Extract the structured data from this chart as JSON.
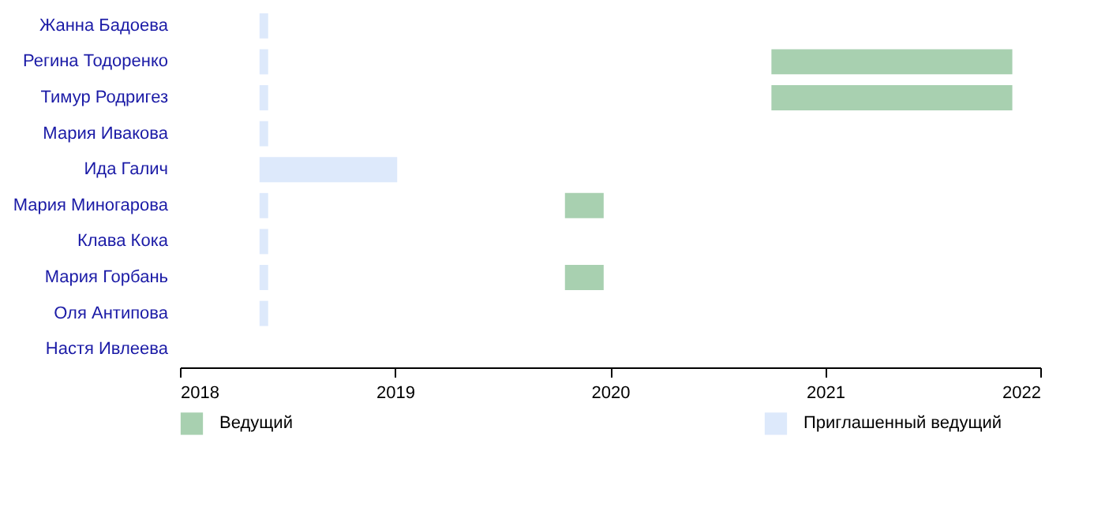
{
  "chart_data": {
    "type": "bar",
    "orientation": "horizontal",
    "categories": [
      "Жанна Бадоева",
      "Регина Тодоренко",
      "Тимур Родригез",
      "Мария Ивакова",
      "Ида Галич",
      "Мария Миногарова",
      "Клава Кока",
      "Мария Горбань",
      "Оля Антипова",
      "Настя Ивлеева"
    ],
    "series": [
      {
        "name": "Ведущий",
        "color": "#a8d0b0",
        "base": [
          null,
          2020.75,
          2020.75,
          null,
          null,
          2019.79,
          null,
          2019.79,
          null,
          null
        ],
        "values": [
          null,
          1.12,
          1.12,
          null,
          null,
          0.18,
          null,
          0.18,
          null,
          null
        ]
      },
      {
        "name": "Приглашенный ведущий",
        "color": "#dde9fb",
        "base": [
          2018.37,
          2018.37,
          2018.37,
          2018.37,
          2018.37,
          2018.37,
          2018.37,
          2018.37,
          2018.37,
          null
        ],
        "values": [
          0.04,
          0.04,
          0.04,
          0.04,
          0.64,
          0.04,
          0.04,
          0.04,
          0.04,
          null
        ]
      }
    ],
    "xlim": [
      2018,
      2022
    ],
    "xticks": [
      2018,
      2019,
      2020,
      2021,
      2022
    ],
    "grid": false,
    "legend": "bottom"
  }
}
